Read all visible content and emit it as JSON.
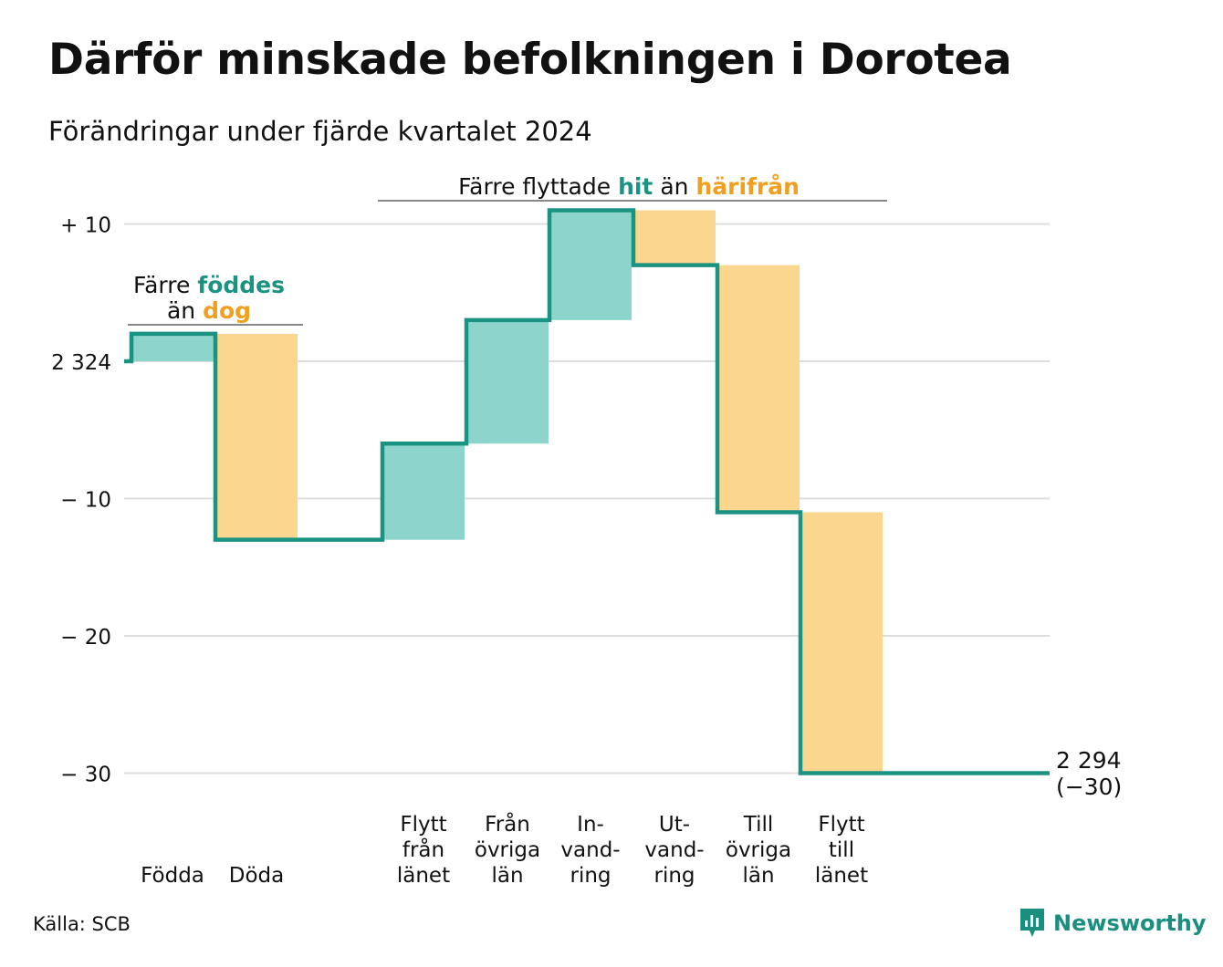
{
  "title": "Därför minskade befolkningen i Dorotea",
  "subtitle": "Förändringar under fjärde kvartalet 2024",
  "source": "Källa: SCB",
  "brand": "Newsworthy",
  "colors": {
    "increase": "#8dd4cc",
    "decrease": "#fad68f",
    "line": "#1b9383",
    "teal_text": "#1b9383",
    "orange_text": "#f0a01e",
    "grid": "#dddddd"
  },
  "annotations": {
    "births_deaths": {
      "line1_prefix": "Färre ",
      "line1_highlight": "föddes",
      "line2_prefix": "än ",
      "line2_highlight": "dog"
    },
    "migration": {
      "prefix": "Färre flyttade ",
      "highlight1": "hit",
      "middle": " än ",
      "highlight2": "härifrån"
    }
  },
  "chart_data": {
    "type": "waterfall",
    "start_value": 2324,
    "start_label": "2 324",
    "end_value": 2294,
    "end_label": "2 294",
    "end_change_label": "(−30)",
    "y_change_range": [
      -30,
      12
    ],
    "y_ticks": [
      {
        "value": 10,
        "label": "+ 10"
      },
      {
        "value": 0,
        "label": "2 324"
      },
      {
        "value": -10,
        "label": "− 10"
      },
      {
        "value": -20,
        "label": "− 20"
      },
      {
        "value": -30,
        "label": "− 30"
      }
    ],
    "grid": true,
    "steps": [
      {
        "label": [
          "Födda"
        ],
        "change": 2,
        "kind": "increase"
      },
      {
        "label": [
          "Döda"
        ],
        "change": -15,
        "kind": "decrease"
      },
      {
        "label": [
          "Flytt",
          "från",
          "länet"
        ],
        "change": 7,
        "kind": "increase"
      },
      {
        "label": [
          "Från",
          "övriga",
          "län"
        ],
        "change": 9,
        "kind": "increase"
      },
      {
        "label": [
          "In-",
          "vand-",
          "ring"
        ],
        "change": 8,
        "kind": "increase"
      },
      {
        "label": [
          "Ut-",
          "vand-",
          "ring"
        ],
        "change": -4,
        "kind": "decrease"
      },
      {
        "label": [
          "Till",
          "övriga",
          "län"
        ],
        "change": -18,
        "kind": "decrease"
      },
      {
        "label": [
          "Flytt",
          "till",
          "länet"
        ],
        "change": -19,
        "kind": "decrease"
      }
    ]
  }
}
